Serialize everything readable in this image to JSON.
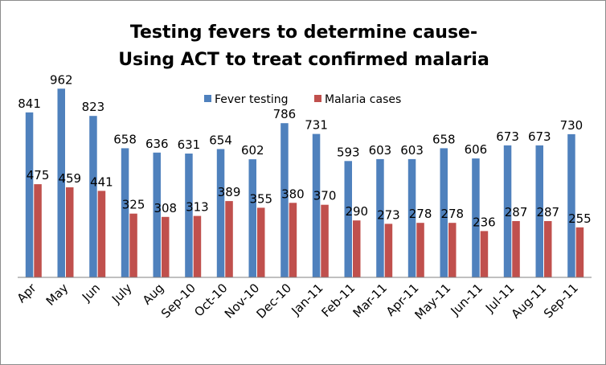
{
  "chart_data": {
    "type": "bar",
    "title_lines": [
      "Testing fevers to determine cause-",
      "Using ACT to treat confirmed malaria"
    ],
    "categories": [
      "Apr",
      "May",
      "Jun",
      "July",
      "Aug",
      "Sep-10",
      "Oct-10",
      "Nov-10",
      "Dec-10",
      "Jan-11",
      "Feb-11",
      "Mar-11",
      "Apr-11",
      "May-11",
      "Jun-11",
      "Jul-11",
      "Aug-11",
      "Sep-11"
    ],
    "series": [
      {
        "name": "Fever testing",
        "color": "#4f81bd",
        "values": [
          841,
          962,
          823,
          658,
          636,
          631,
          654,
          602,
          786,
          731,
          593,
          603,
          603,
          658,
          606,
          673,
          673,
          730
        ]
      },
      {
        "name": "Malaria cases",
        "color": "#c0504d",
        "values": [
          475,
          459,
          441,
          325,
          308,
          313,
          389,
          355,
          380,
          370,
          290,
          273,
          278,
          278,
          236,
          287,
          287,
          255
        ]
      }
    ],
    "ylim": [
      0,
      1000
    ],
    "legend_position": "top-center",
    "grid": false,
    "xlabel": "",
    "ylabel": ""
  }
}
